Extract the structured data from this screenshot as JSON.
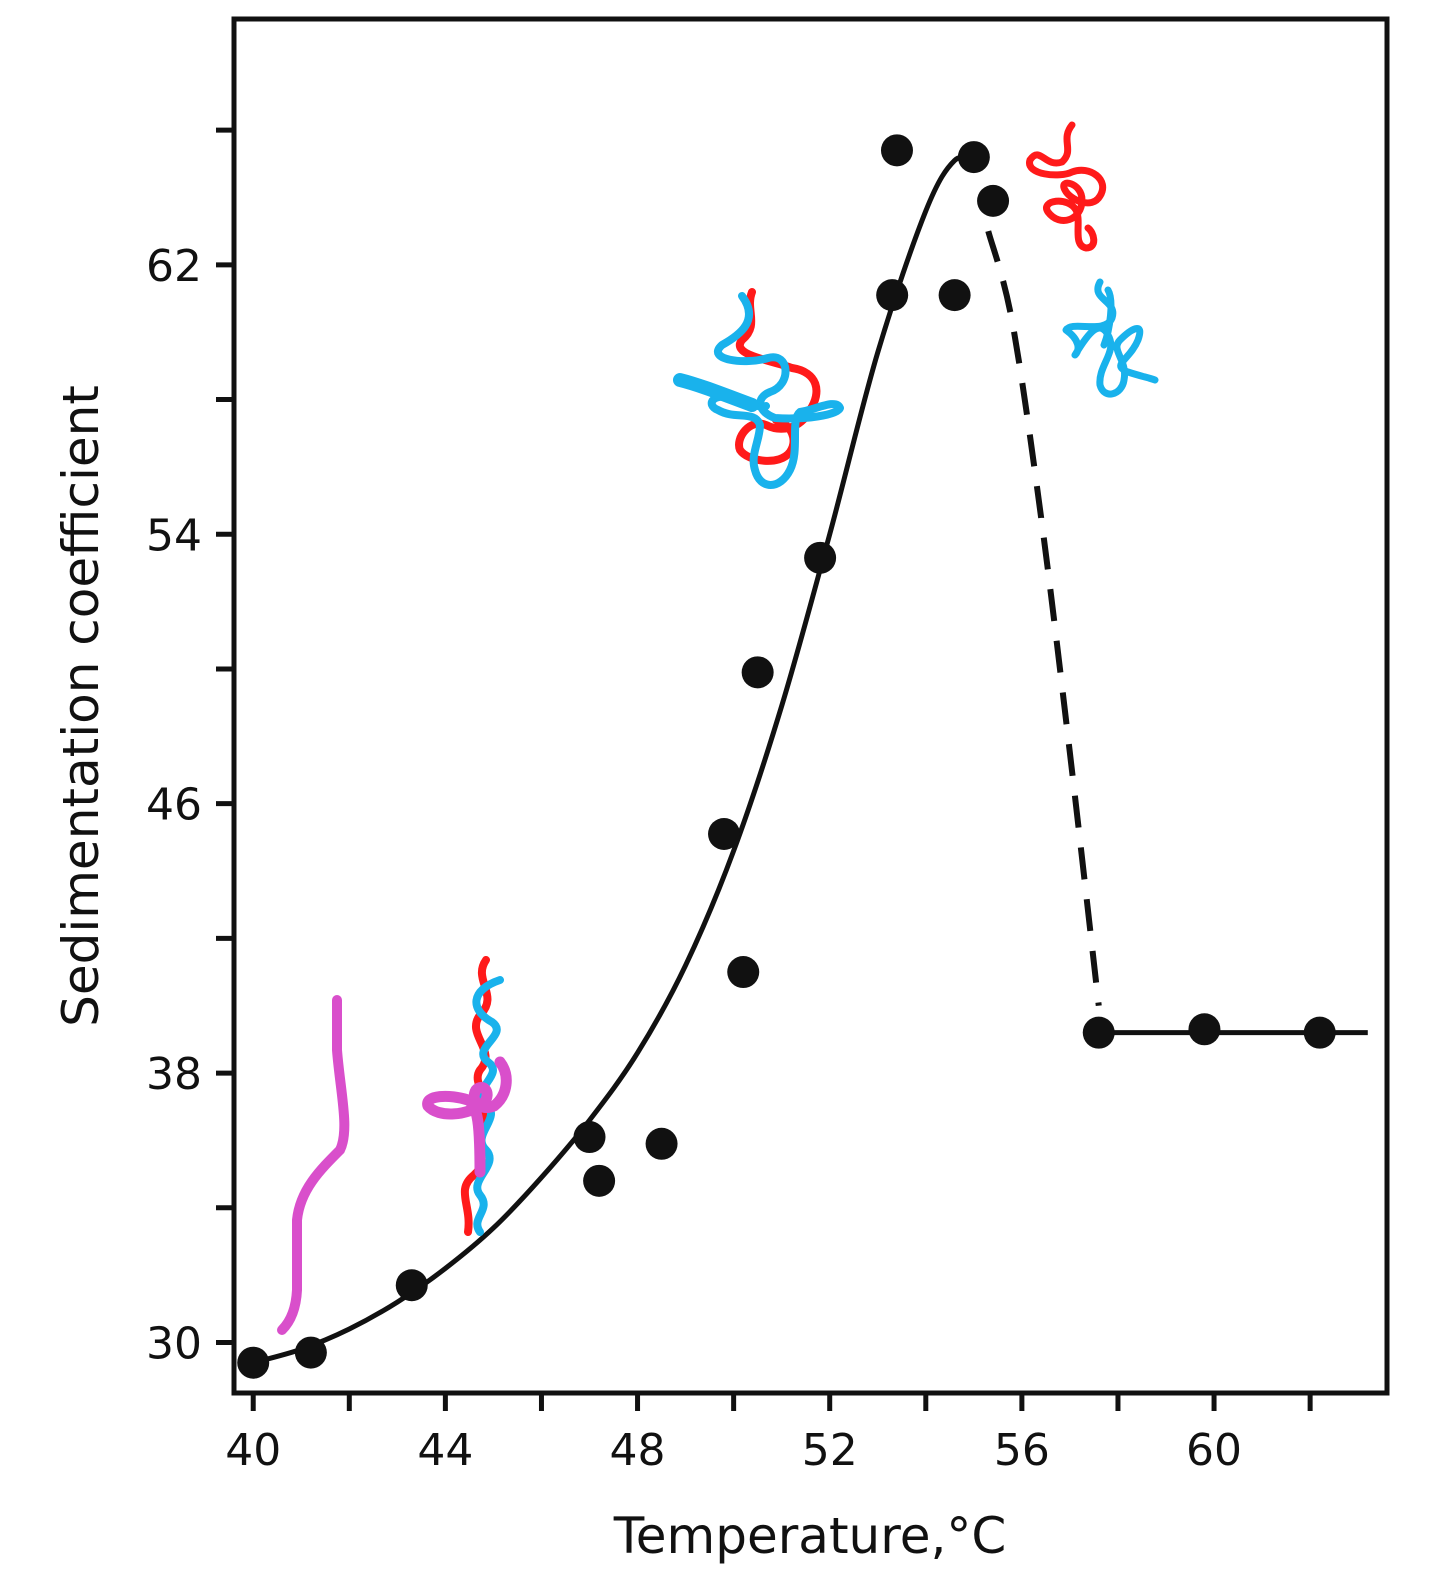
{
  "chart_data": {
    "type": "scatter",
    "xlabel": "Temperature,°C",
    "ylabel": "Sedimentation coefficient",
    "xlim": [
      39.6,
      63.6
    ],
    "ylim": [
      28.5,
      69.3
    ],
    "x_ticks": [
      40,
      42,
      44,
      46,
      48,
      50,
      52,
      54,
      56,
      58,
      60,
      62
    ],
    "x_tick_labels": [
      "40",
      "44",
      "48",
      "52",
      "56",
      "60"
    ],
    "x_tick_label_values": [
      40,
      44,
      48,
      52,
      56,
      60
    ],
    "y_ticks": [
      30,
      34,
      38,
      42,
      46,
      50,
      54,
      58,
      62,
      66
    ],
    "y_tick_labels": [
      "30",
      "38",
      "46",
      "54",
      "62"
    ],
    "y_tick_label_values": [
      30,
      38,
      46,
      54,
      62
    ],
    "grid": false,
    "points": [
      {
        "x": 40.0,
        "y": 29.4
      },
      {
        "x": 41.2,
        "y": 29.7
      },
      {
        "x": 43.3,
        "y": 31.7
      },
      {
        "x": 47.0,
        "y": 36.1
      },
      {
        "x": 47.2,
        "y": 34.8
      },
      {
        "x": 48.5,
        "y": 35.9
      },
      {
        "x": 49.8,
        "y": 45.1
      },
      {
        "x": 50.2,
        "y": 41.0
      },
      {
        "x": 50.5,
        "y": 49.9
      },
      {
        "x": 51.8,
        "y": 53.3
      },
      {
        "x": 53.3,
        "y": 61.1
      },
      {
        "x": 53.4,
        "y": 65.4
      },
      {
        "x": 54.6,
        "y": 61.1
      },
      {
        "x": 55.0,
        "y": 65.2
      },
      {
        "x": 55.4,
        "y": 63.9
      },
      {
        "x": 57.6,
        "y": 39.2
      },
      {
        "x": 59.8,
        "y": 39.3
      },
      {
        "x": 62.2,
        "y": 39.2
      }
    ],
    "fit_curve": [
      [
        40.0,
        29.4
      ],
      [
        41.0,
        29.8
      ],
      [
        42.0,
        30.4
      ],
      [
        43.0,
        31.2
      ],
      [
        44.0,
        32.2
      ],
      [
        45.0,
        33.4
      ],
      [
        46.0,
        34.9
      ],
      [
        47.0,
        36.6
      ],
      [
        48.0,
        38.6
      ],
      [
        49.0,
        41.2
      ],
      [
        50.0,
        44.6
      ],
      [
        51.0,
        48.9
      ],
      [
        52.0,
        54.0
      ],
      [
        53.0,
        59.4
      ],
      [
        54.0,
        63.6
      ],
      [
        54.6,
        65.1
      ],
      [
        55.0,
        65.0
      ]
    ],
    "dashed_segment": [
      [
        55.3,
        63.0
      ],
      [
        55.8,
        60.3
      ],
      [
        56.4,
        54.5
      ],
      [
        57.0,
        47.5
      ],
      [
        57.6,
        40.0
      ]
    ],
    "plateau_line": [
      [
        57.6,
        39.2
      ],
      [
        63.2,
        39.2
      ]
    ],
    "sketch_colors": {
      "red": "#ff1a1a",
      "blue": "#19b2ec",
      "magenta": "#d94fcb"
    }
  }
}
